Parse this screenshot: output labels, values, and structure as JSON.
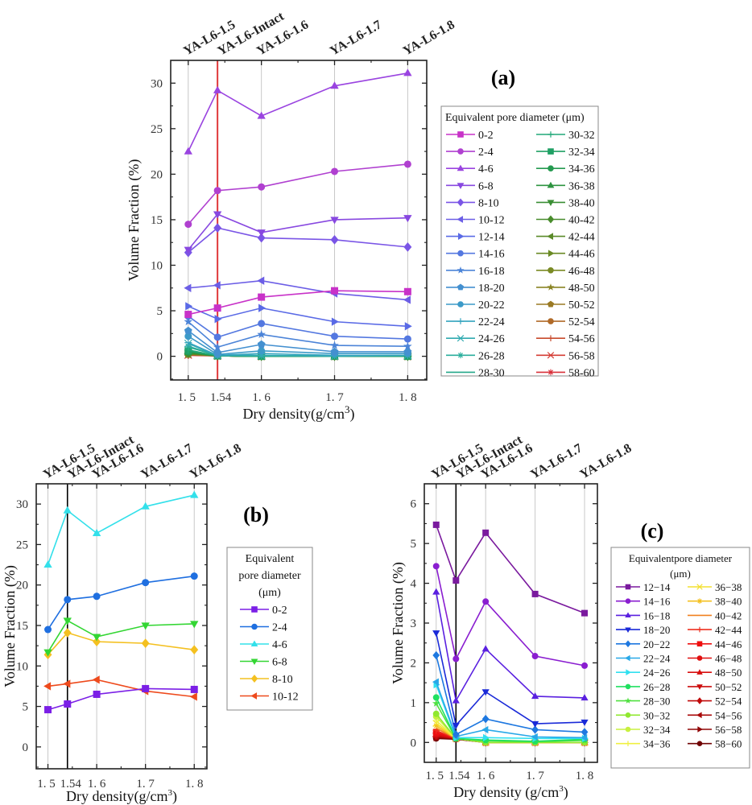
{
  "chart_data": [
    {
      "type": "line",
      "panel": "(a)",
      "title": "",
      "xlabel": "Dry density(g/cm³)",
      "ylabel": "Volume Fraction (%)",
      "xlim": [
        1.476,
        1.826
      ],
      "ylim": [
        -2.6,
        32.5
      ],
      "x": [
        1.5,
        1.54,
        1.6,
        1.7,
        1.8
      ],
      "x_tick_labels": [
        "1. 5",
        "1.54",
        "1. 6",
        "1. 7",
        "1. 8"
      ],
      "y_ticks": [
        0,
        5,
        10,
        15,
        20,
        25,
        30
      ],
      "top_labels": [
        "YA-L6-1.5",
        "YA-L6-Intact",
        "YA-L6-1.6",
        "YA-L6-1.7",
        "YA-L6-1.8"
      ],
      "reference_line": {
        "x": 1.54,
        "color": "#e0383a"
      },
      "highlight_color": "#e0383a",
      "grid": "vertical",
      "legend_title": "Equivalent pore diameter (μm)",
      "legend_placement": "right",
      "series": [
        {
          "name": "0-2",
          "color": "#c832c8",
          "marker": "square",
          "values": [
            4.6,
            5.3,
            6.5,
            7.2,
            7.1
          ]
        },
        {
          "name": "2-4",
          "color": "#b040d0",
          "marker": "circle",
          "values": [
            14.5,
            18.2,
            18.6,
            20.3,
            21.1
          ]
        },
        {
          "name": "4-6",
          "color": "#9a44e0",
          "marker": "triangle-up",
          "values": [
            22.5,
            29.2,
            26.4,
            29.7,
            31.1
          ]
        },
        {
          "name": "6-8",
          "color": "#8848e0",
          "marker": "triangle-down",
          "values": [
            11.7,
            15.6,
            13.6,
            15.0,
            15.2
          ]
        },
        {
          "name": "8-10",
          "color": "#7a55e6",
          "marker": "diamond",
          "values": [
            11.4,
            14.1,
            13.0,
            12.8,
            12.0
          ]
        },
        {
          "name": "10-12",
          "color": "#6c5ee6",
          "marker": "triangle-left",
          "values": [
            7.5,
            7.8,
            8.3,
            6.9,
            6.2
          ]
        },
        {
          "name": "12-14",
          "color": "#5a6ae6",
          "marker": "triangle-right",
          "values": [
            5.5,
            4.1,
            5.3,
            3.8,
            3.3
          ]
        },
        {
          "name": "14-16",
          "color": "#5478e0",
          "marker": "circle",
          "values": [
            4.4,
            2.1,
            3.6,
            2.2,
            1.9
          ]
        },
        {
          "name": "16-18",
          "color": "#4c84d8",
          "marker": "star",
          "values": [
            3.8,
            1.0,
            2.4,
            1.2,
            1.1
          ]
        },
        {
          "name": "18-20",
          "color": "#4490d0",
          "marker": "pentagon",
          "values": [
            2.8,
            0.4,
            1.3,
            0.5,
            0.5
          ]
        },
        {
          "name": "20-22",
          "color": "#3c9ac8",
          "marker": "circle",
          "values": [
            2.2,
            0.2,
            0.6,
            0.3,
            0.3
          ]
        },
        {
          "name": "22-24",
          "color": "#34a4be",
          "marker": "plus",
          "values": [
            1.5,
            0.1,
            0.3,
            0.1,
            0.1
          ]
        },
        {
          "name": "24-26",
          "color": "#30aab0",
          "marker": "x",
          "values": [
            1.4,
            0.1,
            0.1,
            0.0,
            0.1
          ]
        },
        {
          "name": "26-28",
          "color": "#2aae9c",
          "marker": "asterisk",
          "values": [
            1.1,
            0.1,
            0.05,
            0.05,
            0.1
          ]
        },
        {
          "name": "28-30",
          "color": "#24a88a",
          "marker": "none",
          "values": [
            1.0,
            0.1,
            0.05,
            0.05,
            0.1
          ]
        },
        {
          "name": "30-32",
          "color": "#22a878",
          "marker": "plus",
          "values": [
            0.7,
            0.05,
            0.05,
            0.05,
            0.05
          ]
        },
        {
          "name": "32-34",
          "color": "#20a064",
          "marker": "square",
          "values": [
            0.6,
            0.05,
            0.0,
            0.05,
            0.0
          ]
        },
        {
          "name": "34-36",
          "color": "#259a50",
          "marker": "circle",
          "values": [
            0.5,
            0.05,
            0.0,
            0.0,
            0.0
          ]
        },
        {
          "name": "36-38",
          "color": "#2e9440",
          "marker": "triangle-up",
          "values": [
            0.45,
            0.05,
            0.0,
            0.0,
            0.0
          ]
        },
        {
          "name": "38-40",
          "color": "#3a8e34",
          "marker": "triangle-down",
          "values": [
            0.4,
            0.05,
            0.0,
            0.0,
            0.0
          ]
        },
        {
          "name": "40-42",
          "color": "#488c2c",
          "marker": "diamond",
          "values": [
            0.35,
            0.05,
            0.0,
            0.0,
            0.0
          ]
        },
        {
          "name": "42-44",
          "color": "#5a8a28",
          "marker": "triangle-left",
          "values": [
            0.3,
            0.05,
            0.0,
            0.0,
            0.0
          ]
        },
        {
          "name": "44-46",
          "color": "#6a8a24",
          "marker": "triangle-right",
          "values": [
            0.3,
            0.05,
            0.0,
            0.0,
            0.0
          ]
        },
        {
          "name": "46-48",
          "color": "#7a8a24",
          "marker": "circle",
          "values": [
            0.25,
            0.05,
            0.0,
            0.0,
            0.0
          ]
        },
        {
          "name": "48-50",
          "color": "#8a8424",
          "marker": "star",
          "values": [
            0.25,
            0.05,
            0.0,
            0.0,
            0.0
          ]
        },
        {
          "name": "50-52",
          "color": "#9a7a24",
          "marker": "pentagon",
          "values": [
            0.2,
            0.05,
            0.0,
            0.0,
            0.0
          ]
        },
        {
          "name": "52-54",
          "color": "#b06a28",
          "marker": "circle",
          "values": [
            0.2,
            0.05,
            0.0,
            0.0,
            0.0
          ]
        },
        {
          "name": "54-56",
          "color": "#c84a2c",
          "marker": "plus",
          "values": [
            0.15,
            0.05,
            0.0,
            0.0,
            0.0
          ]
        },
        {
          "name": "56-58",
          "color": "#d43c34",
          "marker": "x",
          "values": [
            0.15,
            0.05,
            0.0,
            0.0,
            0.0
          ]
        },
        {
          "name": "58-60",
          "color": "#d8303a",
          "marker": "asterisk",
          "values": [
            0.1,
            0.05,
            0.0,
            0.0,
            0.0
          ]
        }
      ]
    },
    {
      "type": "line",
      "panel": "(b)",
      "title": "",
      "xlabel": "Dry density(g/cm³)",
      "ylabel": "Volume Fraction (%)",
      "xlim": [
        1.476,
        1.826
      ],
      "ylim": [
        -2.7,
        32.5
      ],
      "x": [
        1.5,
        1.54,
        1.6,
        1.7,
        1.8
      ],
      "x_tick_labels": [
        "1. 5",
        "1.54",
        "1. 6",
        "1. 7",
        "1. 8"
      ],
      "y_ticks": [
        0,
        5,
        10,
        15,
        20,
        25,
        30
      ],
      "top_labels": [
        "YA-L6-1.5",
        "YA-L6-Intact",
        "YA-L6-1.6",
        "YA-L6-1.7",
        "YA-L6-1.8"
      ],
      "reference_line": {
        "x": 1.54,
        "color": "#000000"
      },
      "highlight_color": "#e0383a",
      "grid": "vertical",
      "legend_title": [
        "Equivalent",
        "pore diameter",
        "(μm)"
      ],
      "legend_placement": "right",
      "series": [
        {
          "name": "0-2",
          "color": "#7b1fe6",
          "marker": "square",
          "values": [
            4.6,
            5.3,
            6.5,
            7.2,
            7.1
          ]
        },
        {
          "name": "2-4",
          "color": "#1f6fe0",
          "marker": "circle",
          "values": [
            14.5,
            18.2,
            18.6,
            20.3,
            21.1
          ]
        },
        {
          "name": "4-6",
          "color": "#33e0ea",
          "marker": "triangle-up",
          "values": [
            22.5,
            29.2,
            26.4,
            29.7,
            31.1
          ]
        },
        {
          "name": "6-8",
          "color": "#33d633",
          "marker": "triangle-down",
          "values": [
            11.7,
            15.6,
            13.6,
            15.0,
            15.2
          ]
        },
        {
          "name": "8-10",
          "color": "#f4c020",
          "marker": "diamond",
          "values": [
            11.4,
            14.1,
            13.0,
            12.8,
            12.0
          ]
        },
        {
          "name": "10-12",
          "color": "#ee4a1c",
          "marker": "triangle-left",
          "values": [
            7.5,
            7.8,
            8.3,
            6.9,
            6.2
          ]
        }
      ]
    },
    {
      "type": "line",
      "panel": "(c)",
      "title": "",
      "xlabel": "Dry density (g/cm³)",
      "ylabel": "Volume Fraction (%)",
      "xlim": [
        1.476,
        1.826
      ],
      "ylim": [
        -0.5,
        6.5
      ],
      "x": [
        1.5,
        1.54,
        1.6,
        1.7,
        1.8
      ],
      "x_tick_labels": [
        "1. 5",
        "1.54",
        "1. 6",
        "1. 7",
        "1. 8"
      ],
      "y_ticks": [
        0,
        1,
        2,
        3,
        4,
        5,
        6
      ],
      "top_labels": [
        "YA-L6-1.5",
        "YA-L6-Intact",
        "YA-L6-1.6",
        "YA-L6-1.7",
        "YA-L6-1.8"
      ],
      "reference_line": {
        "x": 1.54,
        "color": "#000000"
      },
      "highlight_color": "#e0383a",
      "grid": "vertical",
      "legend_title": [
        "Equivalentpore diameter",
        "(μm)"
      ],
      "legend_placement": "right",
      "series": [
        {
          "name": "12−14",
          "color": "#7a1a9e",
          "marker": "square",
          "values": [
            5.47,
            4.07,
            5.27,
            3.73,
            3.25
          ]
        },
        {
          "name": "14−16",
          "color": "#8a1ed0",
          "marker": "circle",
          "values": [
            4.43,
            2.1,
            3.54,
            2.17,
            1.93
          ]
        },
        {
          "name": "16−18",
          "color": "#5a20e0",
          "marker": "triangle-up",
          "values": [
            3.78,
            1.05,
            2.35,
            1.16,
            1.12
          ]
        },
        {
          "name": "18−20",
          "color": "#1a2ad8",
          "marker": "triangle-down",
          "values": [
            2.75,
            0.43,
            1.27,
            0.47,
            0.51
          ]
        },
        {
          "name": "20−22",
          "color": "#1e78e0",
          "marker": "diamond",
          "values": [
            2.19,
            0.2,
            0.59,
            0.32,
            0.26
          ]
        },
        {
          "name": "22−24",
          "color": "#28a8e8",
          "marker": "triangle-left",
          "values": [
            1.52,
            0.15,
            0.32,
            0.14,
            0.12
          ]
        },
        {
          "name": "24−26",
          "color": "#30e0f0",
          "marker": "triangle-right",
          "values": [
            1.45,
            0.12,
            0.12,
            0.1,
            0.1
          ]
        },
        {
          "name": "26−28",
          "color": "#20e060",
          "marker": "circle",
          "values": [
            1.13,
            0.1,
            0.06,
            0.03,
            0.08
          ]
        },
        {
          "name": "28−30",
          "color": "#50e040",
          "marker": "star",
          "values": [
            0.98,
            0.1,
            0.04,
            0.02,
            0.05
          ]
        },
        {
          "name": "30−32",
          "color": "#90e830",
          "marker": "circle",
          "values": [
            0.72,
            0.1,
            0.0,
            0.0,
            0.0
          ]
        },
        {
          "name": "32−34",
          "color": "#c8f040",
          "marker": "circle",
          "values": [
            0.65,
            0.1,
            0.0,
            0.0,
            0.0
          ]
        },
        {
          "name": "34−36",
          "color": "#f0f040",
          "marker": "plus",
          "values": [
            0.55,
            0.1,
            0.0,
            0.0,
            0.0
          ]
        },
        {
          "name": "36−38",
          "color": "#f4e030",
          "marker": "x",
          "values": [
            0.48,
            0.1,
            0.0,
            0.0,
            0.0
          ]
        },
        {
          "name": "38−40",
          "color": "#f4c020",
          "marker": "asterisk",
          "values": [
            0.42,
            0.1,
            0.0,
            0.0,
            0.0
          ]
        },
        {
          "name": "40−42",
          "color": "#f08020",
          "marker": "none",
          "values": [
            0.36,
            0.1,
            0.0,
            0.0,
            0.0
          ]
        },
        {
          "name": "42−44",
          "color": "#ee3020",
          "marker": "plus",
          "values": [
            0.3,
            0.1,
            0.0,
            0.0,
            0.0
          ]
        },
        {
          "name": "44−46",
          "color": "#ee1010",
          "marker": "square",
          "values": [
            0.26,
            0.1,
            0.0,
            0.0,
            0.0
          ]
        },
        {
          "name": "46−48",
          "color": "#e01010",
          "marker": "circle",
          "values": [
            0.22,
            0.1,
            0.0,
            0.0,
            0.0
          ]
        },
        {
          "name": "48−50",
          "color": "#d80e0e",
          "marker": "triangle-up",
          "values": [
            0.2,
            0.1,
            0.0,
            0.0,
            0.0
          ]
        },
        {
          "name": "50−52",
          "color": "#cc0c0c",
          "marker": "triangle-down",
          "values": [
            0.18,
            0.1,
            0.0,
            0.0,
            0.0
          ]
        },
        {
          "name": "52−54",
          "color": "#c00a0a",
          "marker": "diamond",
          "values": [
            0.16,
            0.1,
            0.0,
            0.0,
            0.0
          ]
        },
        {
          "name": "54−56",
          "color": "#a80808",
          "marker": "triangle-left",
          "values": [
            0.14,
            0.1,
            0.0,
            0.0,
            0.0
          ]
        },
        {
          "name": "56−58",
          "color": "#900606",
          "marker": "triangle-right",
          "values": [
            0.12,
            0.1,
            0.0,
            0.0,
            0.0
          ]
        },
        {
          "name": "58−60",
          "color": "#700404",
          "marker": "circle",
          "values": [
            0.1,
            0.08,
            0.0,
            0.0,
            0.0
          ]
        }
      ]
    }
  ]
}
